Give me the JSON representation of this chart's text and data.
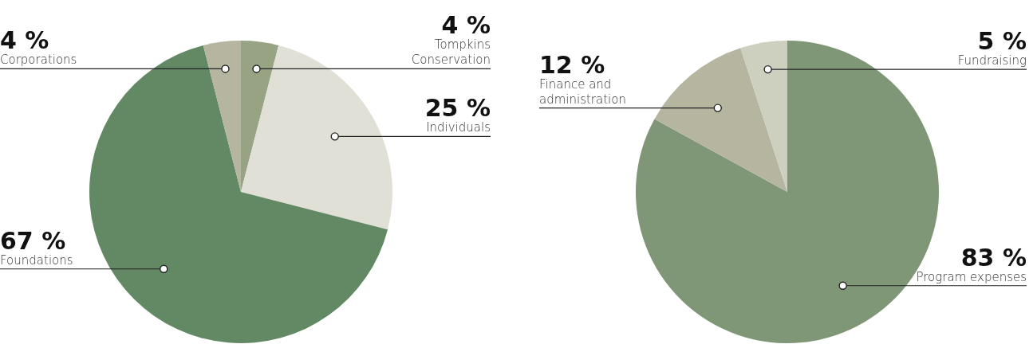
{
  "chart_data": [
    {
      "type": "pie",
      "categories": [
        "Tompkins Conservation",
        "Individuals",
        "Foundations",
        "Corporations"
      ],
      "values": [
        4,
        25,
        67,
        4
      ],
      "value_labels": [
        "4 %",
        "25 %",
        "67 %",
        "4 %"
      ],
      "colors": [
        "#97a383",
        "#e0e0d6",
        "#628963",
        "#b5b5a0"
      ]
    },
    {
      "type": "pie",
      "categories": [
        "Program expenses",
        "Finance and administration",
        "Fundraising"
      ],
      "values": [
        83,
        12,
        5
      ],
      "value_labels": [
        "83 %",
        "12 %",
        "5 %"
      ],
      "colors": [
        "#7f9777",
        "#b5b5a0",
        "#cdcfbf"
      ]
    }
  ]
}
